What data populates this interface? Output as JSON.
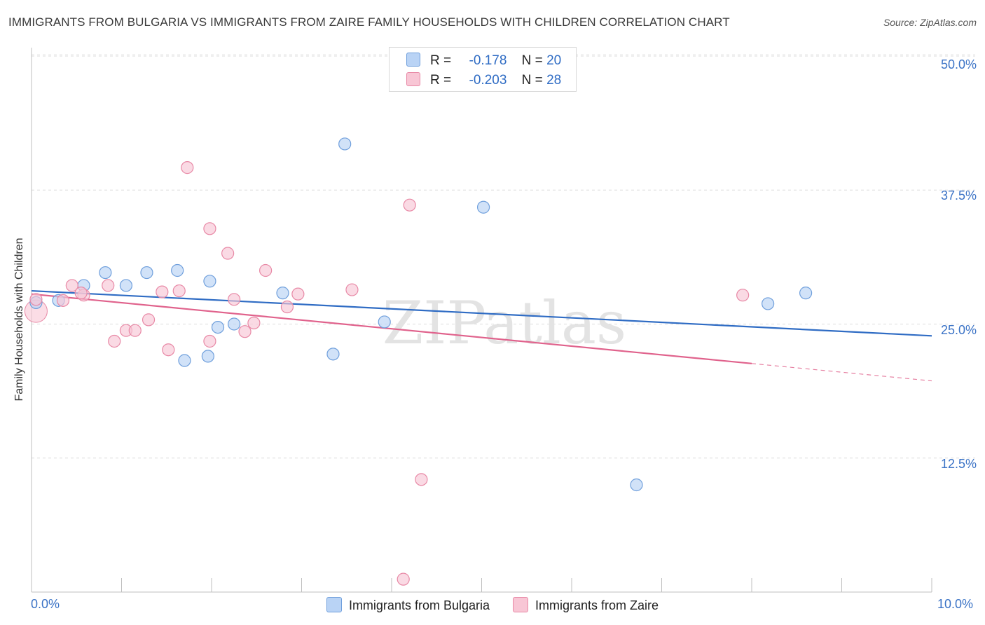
{
  "title": "IMMIGRANTS FROM BULGARIA VS IMMIGRANTS FROM ZAIRE FAMILY HOUSEHOLDS WITH CHILDREN CORRELATION CHART",
  "source": "Source: ZipAtlas.com",
  "watermark": "ZIPatlas",
  "colors": {
    "bulgaria_fill": "#b9d3f5",
    "bulgaria_stroke": "#6f9fdc",
    "bulgaria_line": "#2f6cc4",
    "zaire_fill": "#f8c6d5",
    "zaire_stroke": "#e889a6",
    "zaire_line": "#e0628c",
    "accent_text": "#3b73c6"
  },
  "legend": {
    "rows": [
      {
        "r_label": "R =",
        "r_value": "-0.178",
        "n_label": "N =",
        "n_value": "20"
      },
      {
        "r_label": "R =",
        "r_value": "-0.203",
        "n_label": "N =",
        "n_value": "28"
      }
    ]
  },
  "chart_data": {
    "type": "scatter",
    "title": "IMMIGRANTS FROM BULGARIA VS IMMIGRANTS FROM ZAIRE FAMILY HOUSEHOLDS WITH CHILDREN CORRELATION CHART",
    "xlabel": "",
    "ylabel": "Family Households with Children",
    "xlim": [
      0,
      10
    ],
    "ylim": [
      0,
      50
    ],
    "x_tick_labels": [
      "0.0%",
      "10.0%"
    ],
    "y_ticks": [
      12.5,
      25.0,
      37.5,
      50.0
    ],
    "y_tick_labels": [
      "12.5%",
      "25.0%",
      "37.5%",
      "50.0%"
    ],
    "grid": true,
    "legend_position": "top-center",
    "series": [
      {
        "name": "Immigrants from Bulgaria",
        "points": [
          [
            0.05,
            27.0
          ],
          [
            0.3,
            27.2
          ],
          [
            0.58,
            28.6
          ],
          [
            0.82,
            29.8
          ],
          [
            1.05,
            28.6
          ],
          [
            1.28,
            29.8
          ],
          [
            1.62,
            30.0
          ],
          [
            1.98,
            29.0
          ],
          [
            2.07,
            24.7
          ],
          [
            2.25,
            25.0
          ],
          [
            1.7,
            21.6
          ],
          [
            1.96,
            22.0
          ],
          [
            3.48,
            41.8
          ],
          [
            3.92,
            25.2
          ],
          [
            5.02,
            35.9
          ],
          [
            6.72,
            10.0
          ],
          [
            8.18,
            26.9
          ],
          [
            8.6,
            27.9
          ],
          [
            2.79,
            27.9
          ],
          [
            3.35,
            22.2
          ]
        ],
        "trend": {
          "x": [
            0,
            10
          ],
          "y": [
            28.1,
            23.9
          ],
          "dashed_from": null
        }
      },
      {
        "name": "Immigrants from Zaire",
        "points": [
          [
            0.05,
            27.3
          ],
          [
            0.35,
            27.2
          ],
          [
            0.45,
            28.6
          ],
          [
            0.58,
            27.7
          ],
          [
            0.85,
            28.6
          ],
          [
            1.05,
            24.4
          ],
          [
            1.15,
            24.4
          ],
          [
            1.3,
            25.4
          ],
          [
            1.45,
            28.0
          ],
          [
            1.64,
            28.1
          ],
          [
            1.52,
            22.6
          ],
          [
            1.73,
            39.6
          ],
          [
            1.98,
            33.9
          ],
          [
            2.18,
            31.6
          ],
          [
            2.25,
            27.3
          ],
          [
            2.37,
            24.3
          ],
          [
            2.47,
            25.1
          ],
          [
            2.6,
            30.0
          ],
          [
            2.84,
            26.6
          ],
          [
            2.96,
            27.8
          ],
          [
            3.56,
            28.2
          ],
          [
            4.2,
            36.1
          ],
          [
            4.33,
            10.5
          ],
          [
            4.13,
            1.2
          ],
          [
            0.92,
            23.4
          ],
          [
            0.55,
            27.9
          ],
          [
            1.98,
            23.4
          ],
          [
            7.9,
            27.7
          ]
        ],
        "trend": {
          "x": [
            0,
            10
          ],
          "y": [
            27.8,
            19.7
          ],
          "dashed_from": 8.0
        }
      }
    ]
  },
  "bottom_legend": [
    "Immigrants from Bulgaria",
    "Immigrants from Zaire"
  ]
}
